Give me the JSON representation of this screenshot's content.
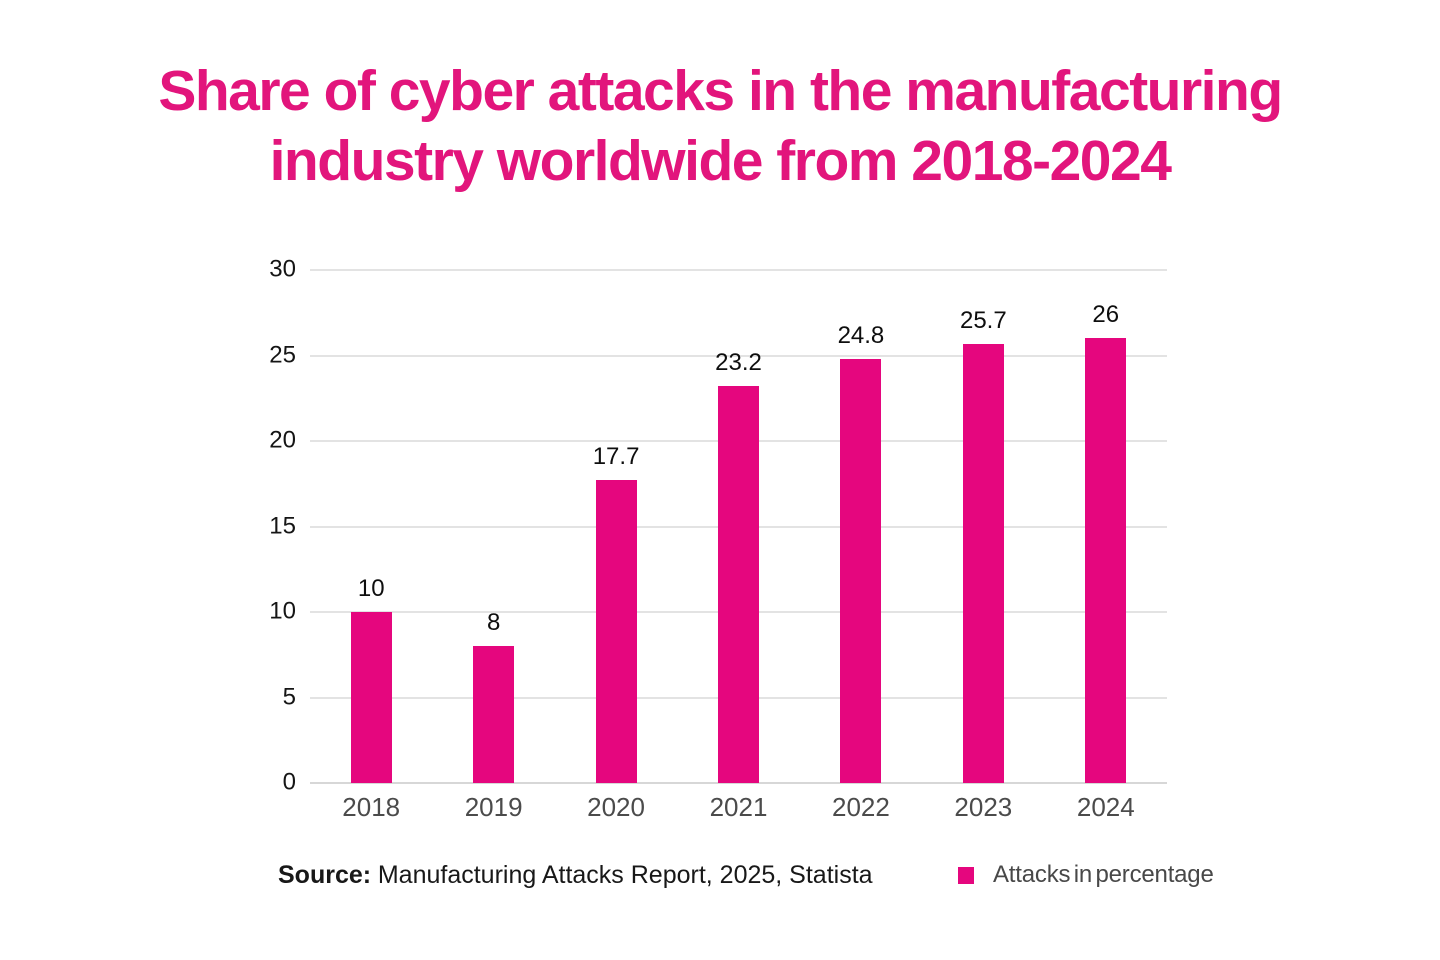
{
  "title": {
    "line1": "Share of cyber attacks in the manufacturing",
    "line2": "industry worldwide from 2018-2024"
  },
  "source": {
    "label": "Source:",
    "text": "Manufacturing Attacks Report, 2025, Statista"
  },
  "legend": {
    "label": "Attacks in percentage",
    "swatch_icon": "square-icon"
  },
  "colors": {
    "title": "#E2157C",
    "bar": "#E5067E",
    "grid": "#E3E3E3",
    "axis_line": "#D7D7D7",
    "y_label": "#151515",
    "x_label": "#4B4B4B",
    "value_label": "#0E0E0E",
    "source_text": "#181818",
    "legend_text": "#484848"
  },
  "chart_data": {
    "type": "bar",
    "title": "Share of cyber attacks in the manufacturing industry worldwide from 2018-2024",
    "categories": [
      "2018",
      "2019",
      "2020",
      "2021",
      "2022",
      "2023",
      "2024"
    ],
    "values": [
      10,
      8,
      17.7,
      23.2,
      24.8,
      25.7,
      26
    ],
    "value_labels": [
      "10",
      "8",
      "17.7",
      "23.2",
      "24.8",
      "25.7",
      "26"
    ],
    "series_name": "Attacks in percentage",
    "xlabel": "",
    "ylabel": "",
    "ylim": [
      0,
      30
    ],
    "yticks": [
      0,
      5,
      10,
      15,
      20,
      25,
      30
    ],
    "grid": true,
    "legend_position": "bottom-right",
    "source": "Source: Manufacturing Attacks Report, 2025, Statista"
  }
}
